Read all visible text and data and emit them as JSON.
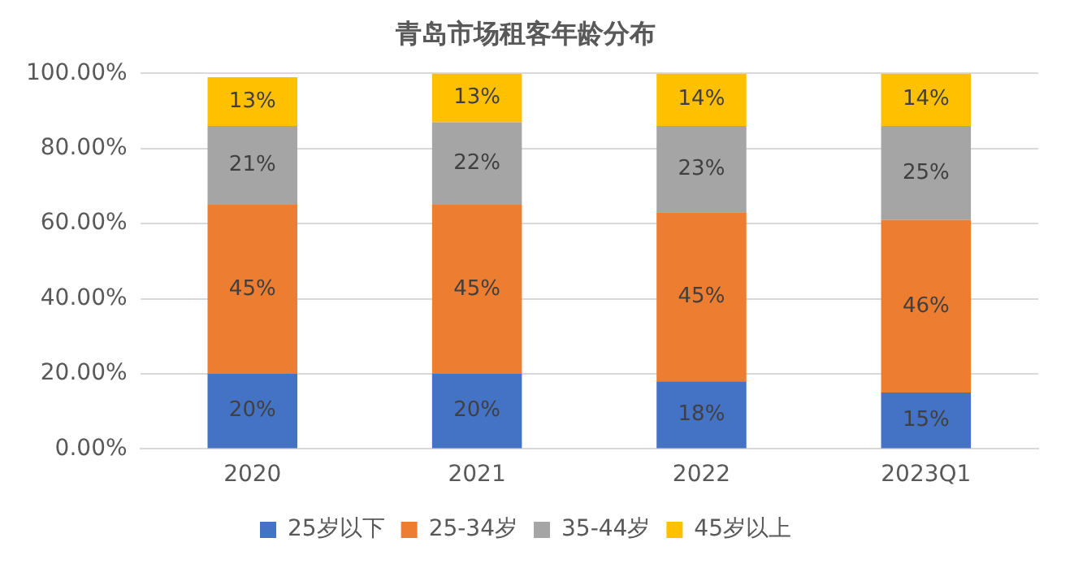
{
  "chart_data": {
    "type": "bar",
    "title": "青岛市场租客年龄分布",
    "stacked": true,
    "categories": [
      "2020",
      "2021",
      "2022",
      "2023Q1"
    ],
    "series": [
      {
        "name": "25岁以下",
        "color": "#4472c4",
        "values": [
          20,
          20,
          18,
          15
        ],
        "value_labels": [
          "20%",
          "20%",
          "18%",
          "15%"
        ]
      },
      {
        "name": "25-34岁",
        "color": "#ed7d31",
        "values": [
          45,
          45,
          45,
          46
        ],
        "value_labels": [
          "45%",
          "45%",
          "45%",
          "46%"
        ]
      },
      {
        "name": "35-44岁",
        "color": "#a5a5a5",
        "values": [
          21,
          22,
          23,
          25
        ],
        "value_labels": [
          "21%",
          "22%",
          "23%",
          "25%"
        ]
      },
      {
        "name": "45岁以上",
        "color": "#ffc000",
        "values": [
          13,
          13,
          14,
          14
        ],
        "value_labels": [
          "13%",
          "13%",
          "14%",
          "14%"
        ]
      }
    ],
    "ylim": [
      0,
      100
    ],
    "yticks": [
      {
        "value": 0,
        "label": "0.00%"
      },
      {
        "value": 20,
        "label": "20.00%"
      },
      {
        "value": 40,
        "label": "40.00%"
      },
      {
        "value": 60,
        "label": "60.00%"
      },
      {
        "value": 80,
        "label": "80.00%"
      },
      {
        "value": 100,
        "label": "100.00%"
      }
    ],
    "grid": "y",
    "legend": "bottom"
  }
}
